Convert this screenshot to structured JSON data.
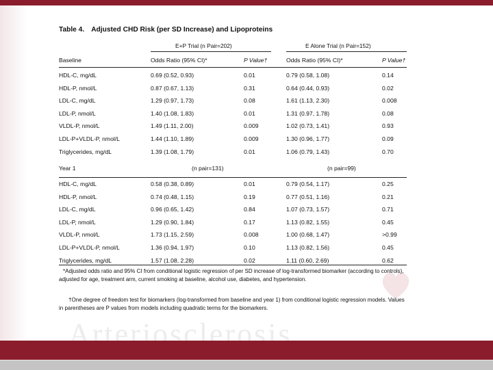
{
  "table": {
    "label": "Table 4.",
    "title": "Adjusted CHD Risk (per SD Increase) and Lipoproteins",
    "trial_ep": "E+P Trial (n Pair=202)",
    "trial_ea": "E Alone Trial (n Pair=152)",
    "columns": {
      "section_baseline": "Baseline",
      "or_ep": "Odds Ratio (95% CI)*",
      "p_ep": "P Value†",
      "or_ea": "Odds Ratio (95% CI)*",
      "p_ea": "P Value†"
    },
    "baseline_rows": [
      {
        "name": "HDL-C, mg/dL",
        "or1": "0.69 (0.52, 0.93)",
        "p1": "0.01",
        "or2": "0.79 (0.58, 1.08)",
        "p2": "0.14"
      },
      {
        "name": "HDL-P, nmol/L",
        "or1": "0.87 (0.67, 1.13)",
        "p1": "0.31",
        "or2": "0.64 (0.44, 0.93)",
        "p2": "0.02"
      },
      {
        "name": "LDL-C, mg/dL",
        "or1": "1.29 (0.97, 1.73)",
        "p1": "0.08",
        "or2": "1.61 (1.13, 2.30)",
        "p2": "0.008"
      },
      {
        "name": "LDL-P, nmol/L",
        "or1": "1.40 (1.08, 1.83)",
        "p1": "0.01",
        "or2": "1.31 (0.97, 1.78)",
        "p2": "0.08"
      },
      {
        "name": "VLDL-P, nmol/L",
        "or1": "1.49 (1.11, 2.00)",
        "p1": "0.009",
        "or2": "1.02 (0.73, 1.41)",
        "p2": "0.93"
      },
      {
        "name": "LDL-P+VLDL-P, nmol/L",
        "or1": "1.44 (1.10, 1.89)",
        "p1": "0.009",
        "or2": "1.30 (0.96, 1.77)",
        "p2": "0.09"
      },
      {
        "name": "Triglycerides, mg/dL",
        "or1": "1.39 (1.08, 1.79)",
        "p1": "0.01",
        "or2": "1.06 (0.79, 1.43)",
        "p2": "0.70"
      }
    ],
    "year1": {
      "label": "Year 1",
      "n_ep": "(n pair=131)",
      "n_ea": "(n pair=99)"
    },
    "year1_rows": [
      {
        "name": "HDL-C, mg/dL",
        "or1": "0.58 (0.38, 0.89)",
        "p1": "0.01",
        "or2": "0.79 (0.54, 1.17)",
        "p2": "0.25"
      },
      {
        "name": "HDL-P, nmol/L",
        "or1": "0.74 (0.48, 1.15)",
        "p1": "0.19",
        "or2": "0.77 (0.51, 1.16)",
        "p2": "0.21"
      },
      {
        "name": "LDL-C, mg/dL",
        "or1": "0.96 (0.65, 1.42)",
        "p1": "0.84",
        "or2": "1.07 (0.73, 1.57)",
        "p2": "0.71"
      },
      {
        "name": "LDL-P, nmol/L",
        "or1": "1.29 (0.90, 1.84)",
        "p1": "0.17",
        "or2": "1.13 (0.82, 1.55)",
        "p2": "0.45"
      },
      {
        "name": "VLDL-P, nmol/L",
        "or1": "1.73 (1.15, 2.59)",
        "p1": "0.008",
        "or2": "1.00 (0.68, 1.47)",
        "p2": ">0.99"
      },
      {
        "name": "LDL-P+VLDL-P, nmol/L",
        "or1": "1.36 (0.94, 1.97)",
        "p1": "0.10",
        "or2": "1.13 (0.82, 1.56)",
        "p2": "0.45"
      },
      {
        "name": "Triglycerides, mg/dL",
        "or1": "1.57 (1.08, 2.28)",
        "p1": "0.02",
        "or2": "1.11 (0.60, 2.69)",
        "p2": "0.62"
      }
    ],
    "footnote1": "*Adjusted odds ratio and 95% CI from conditional logistic regression of per SD increase of log-transformed biomarker (according to controls), adjusted for age, treatment arm, current smoking at baseline, alcohol use, diabetes, and hypertension.",
    "footnote2": "†One degree of freedom test for biomarkers (log-transformed from baseline and year 1) from conditional logistic regression models. Values in parentheses are P values from models including quadratic terms for the biomarkers."
  },
  "watermark": "Arteriosclerosis",
  "colors": {
    "brand": "#8a1c2b",
    "footer_gray": "#c4c4c4"
  }
}
